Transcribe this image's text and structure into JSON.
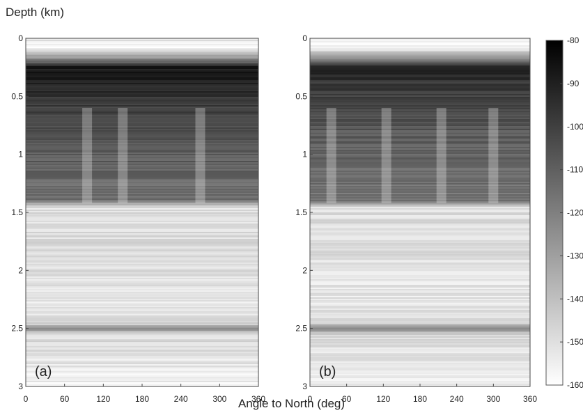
{
  "chart_data": [
    {
      "type": "heatmap",
      "panel_label": "(a)",
      "xlabel": "Angle to North (deg)",
      "ylabel": "Depth (km)",
      "xlim": [
        0,
        360
      ],
      "ylim": [
        3,
        0
      ],
      "x_ticks": [
        "0",
        "60",
        "120",
        "180",
        "240",
        "300",
        "360"
      ],
      "y_ticks": [
        "0",
        "0.5",
        "1",
        "1.5",
        "2",
        "2.5",
        "3"
      ],
      "depth_profile": [
        {
          "depth": 0.0,
          "value": -150
        },
        {
          "depth": 0.08,
          "value": -160
        },
        {
          "depth": 0.18,
          "value": -122
        },
        {
          "depth": 0.25,
          "value": -88
        },
        {
          "depth": 0.4,
          "value": -92
        },
        {
          "depth": 0.6,
          "value": -100
        },
        {
          "depth": 0.9,
          "value": -108
        },
        {
          "depth": 1.2,
          "value": -112
        },
        {
          "depth": 1.4,
          "value": -115
        },
        {
          "depth": 1.45,
          "value": -150
        },
        {
          "depth": 1.7,
          "value": -149
        },
        {
          "depth": 2.2,
          "value": -152
        },
        {
          "depth": 2.45,
          "value": -150
        },
        {
          "depth": 2.5,
          "value": -125
        },
        {
          "depth": 2.56,
          "value": -148
        },
        {
          "depth": 3.0,
          "value": -156
        }
      ],
      "bright_streaks_deg": [
        95,
        150,
        270
      ]
    },
    {
      "type": "heatmap",
      "panel_label": "(b)",
      "xlabel": "Angle to North (deg)",
      "ylabel": "Depth (km)",
      "xlim": [
        0,
        360
      ],
      "ylim": [
        3,
        0
      ],
      "x_ticks": [
        "0",
        "60",
        "120",
        "180",
        "240",
        "300",
        "360"
      ],
      "y_ticks": [
        "0",
        "0.5",
        "1",
        "1.5",
        "2",
        "2.5",
        "3"
      ],
      "depth_profile": [
        {
          "depth": 0.0,
          "value": -150
        },
        {
          "depth": 0.08,
          "value": -160
        },
        {
          "depth": 0.18,
          "value": -122
        },
        {
          "depth": 0.25,
          "value": -92
        },
        {
          "depth": 0.4,
          "value": -98
        },
        {
          "depth": 0.6,
          "value": -103
        },
        {
          "depth": 0.9,
          "value": -110
        },
        {
          "depth": 1.2,
          "value": -114
        },
        {
          "depth": 1.4,
          "value": -117
        },
        {
          "depth": 1.45,
          "value": -150
        },
        {
          "depth": 1.7,
          "value": -149
        },
        {
          "depth": 2.2,
          "value": -152
        },
        {
          "depth": 2.45,
          "value": -150
        },
        {
          "depth": 2.5,
          "value": -125
        },
        {
          "depth": 2.56,
          "value": -148
        },
        {
          "depth": 3.0,
          "value": -156
        }
      ],
      "bright_streaks_deg": [
        35,
        125,
        215,
        300
      ]
    }
  ],
  "colorbar": {
    "range": [
      -160,
      -80
    ],
    "ticks": [
      "-80",
      "-90",
      "-100",
      "-110",
      "-120",
      "-130",
      "-140",
      "-150",
      "-160"
    ],
    "colormap": [
      "#ffffff",
      "#000000"
    ]
  },
  "labels": {
    "ylabel": "Depth (km)",
    "xlabel": "Angle to North (deg)"
  }
}
